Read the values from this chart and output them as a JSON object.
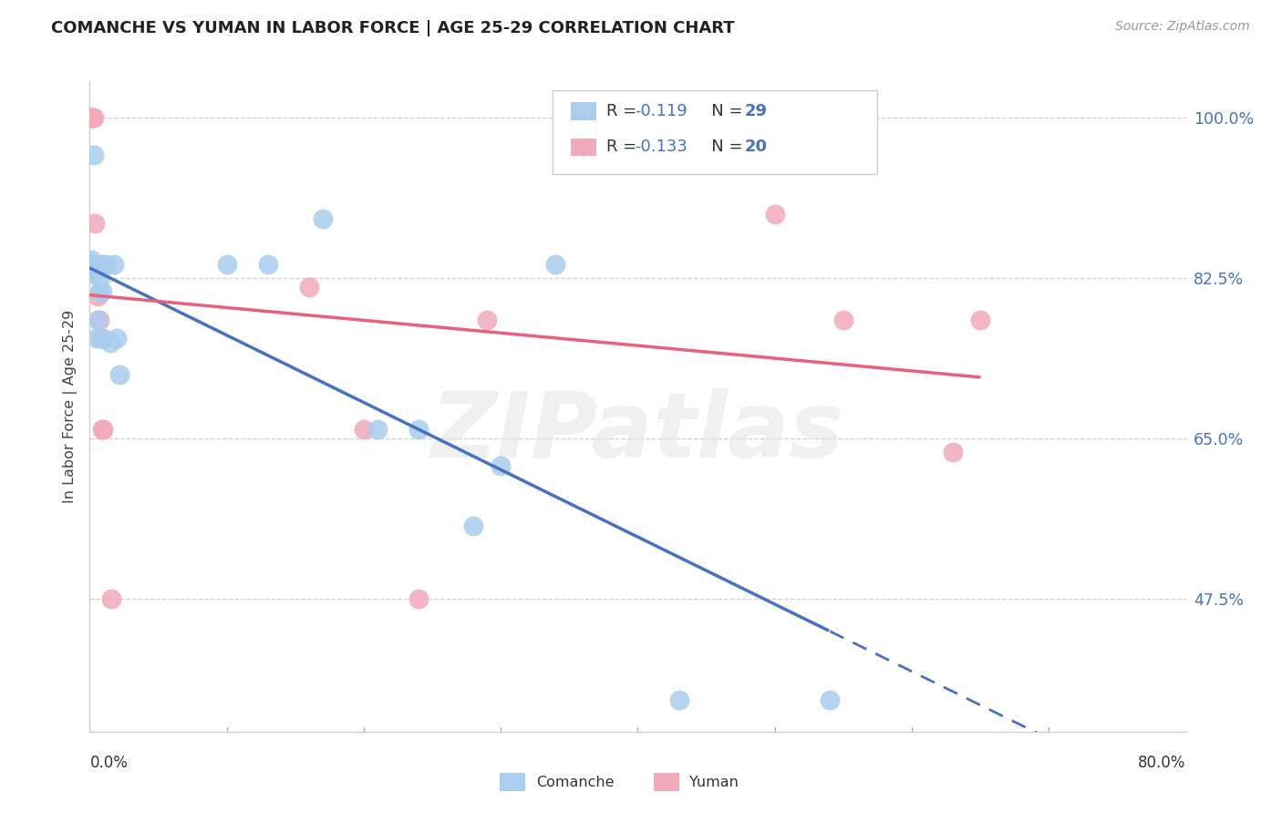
{
  "title": "COMANCHE VS YUMAN IN LABOR FORCE | AGE 25-29 CORRELATION CHART",
  "source": "Source: ZipAtlas.com",
  "ylabel": "In Labor Force | Age 25-29",
  "xmin": 0.0,
  "xmax": 0.8,
  "ymin": 0.33,
  "ymax": 1.04,
  "ytick_vals": [
    1.0,
    0.825,
    0.65,
    0.475
  ],
  "ytick_labels": [
    "100.0%",
    "82.5%",
    "65.0%",
    "47.5%"
  ],
  "watermark": "ZIPatlas",
  "comanche_color": "#A8CDEE",
  "yuman_color": "#F2AABB",
  "trendline_blue": "#4472C4",
  "trendline_pink": "#E8607A",
  "comanche_R": -0.119,
  "comanche_N": 29,
  "yuman_R": -0.133,
  "yuman_N": 20,
  "R_color": "#4472C4",
  "grid_color": "#D0D0D0",
  "bg_color": "#FFFFFF",
  "comanche_x": [
    0.001,
    0.001,
    0.002,
    0.003,
    0.003,
    0.004,
    0.005,
    0.006,
    0.007,
    0.007,
    0.008,
    0.009,
    0.009,
    0.01,
    0.012,
    0.015,
    0.018,
    0.02,
    0.022,
    0.1,
    0.13,
    0.17,
    0.21,
    0.24,
    0.28,
    0.3,
    0.34,
    0.43,
    0.54
  ],
  "comanche_y": [
    0.845,
    0.84,
    0.83,
    0.83,
    0.96,
    0.84,
    0.76,
    0.78,
    0.81,
    0.84,
    0.825,
    0.84,
    0.81,
    0.76,
    0.84,
    0.755,
    0.84,
    0.76,
    0.72,
    0.84,
    0.84,
    0.89,
    0.66,
    0.66,
    0.555,
    0.62,
    0.84,
    0.365,
    0.365
  ],
  "yuman_x": [
    0.001,
    0.002,
    0.002,
    0.003,
    0.004,
    0.005,
    0.006,
    0.007,
    0.008,
    0.009,
    0.01,
    0.016,
    0.16,
    0.2,
    0.24,
    0.29,
    0.5,
    0.55,
    0.63,
    0.65
  ],
  "yuman_y": [
    1.0,
    1.0,
    1.0,
    1.0,
    0.885,
    0.835,
    0.805,
    0.78,
    0.76,
    0.66,
    0.66,
    0.475,
    0.815,
    0.66,
    0.475,
    0.78,
    0.895,
    0.78,
    0.635,
    0.78
  ],
  "xtick_positions": [
    0.0,
    0.1,
    0.2,
    0.3,
    0.4,
    0.5,
    0.6,
    0.7,
    0.8
  ]
}
